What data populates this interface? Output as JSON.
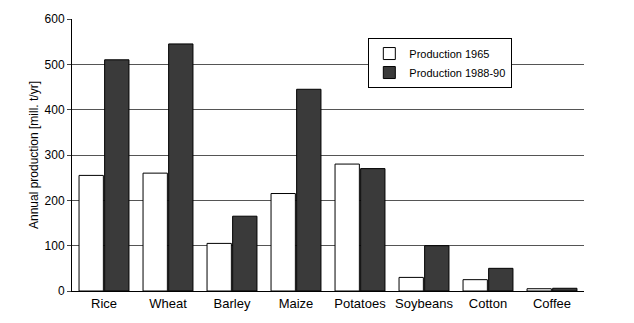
{
  "chart_data": {
    "type": "bar",
    "y_label": "Annual production [mill. t/yr]",
    "categories": [
      "Rice",
      "Wheat",
      "Barley",
      "Maize",
      "Potatoes",
      "Soybeans",
      "Cotton",
      "Coffee"
    ],
    "series": [
      {
        "name": "Production 1965",
        "color": "#ffffff",
        "values": [
          255,
          260,
          105,
          215,
          280,
          30,
          25,
          5
        ]
      },
      {
        "name": "Production 1988-90",
        "color": "#3a3a3a",
        "values": [
          510,
          545,
          165,
          445,
          270,
          100,
          50,
          6
        ]
      }
    ],
    "ylim": [
      0,
      600
    ],
    "yticks": [
      0,
      100,
      200,
      300,
      400,
      500,
      600
    ],
    "grid": true,
    "legend": "upper right"
  }
}
